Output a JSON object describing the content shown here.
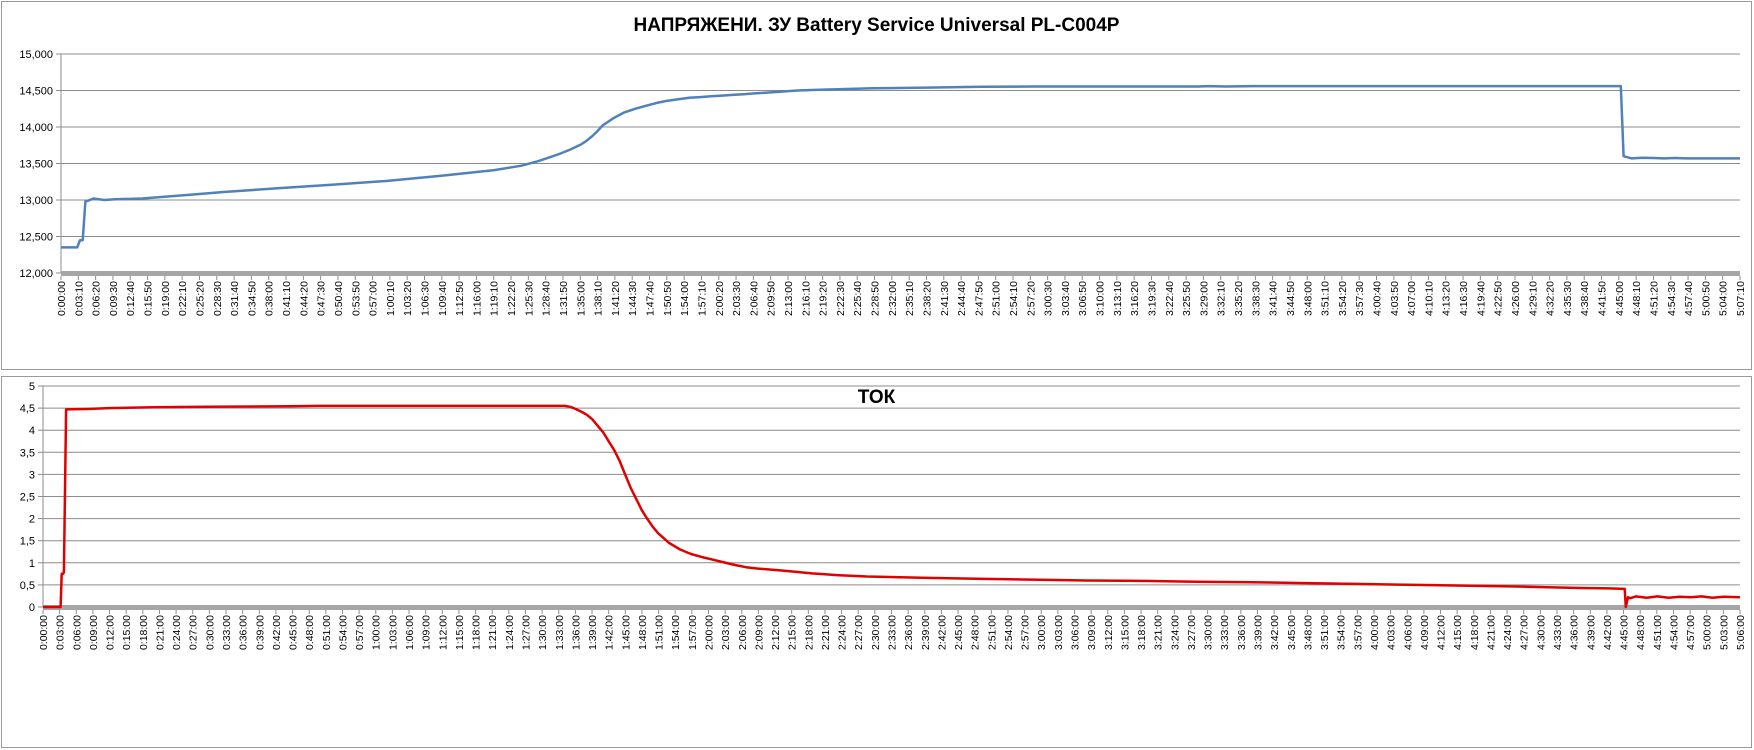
{
  "chart_data": [
    {
      "type": "line",
      "title": "НАПРЯЖЕНИ. ЗУ Battery Service Universal PL-C004P",
      "xlabel": "",
      "ylabel": "",
      "ylim": [
        12000,
        15000
      ],
      "yticks": [
        "12,000",
        "12,500",
        "13,000",
        "13,500",
        "14,000",
        "14,500",
        "15,000"
      ],
      "ytick_values": [
        12000,
        12500,
        13000,
        13500,
        14000,
        14500,
        15000
      ],
      "grid": true,
      "legend": "none",
      "x_ticks": [
        "0:00:00",
        "0:03:10",
        "0:06:20",
        "0:09:30",
        "0:12:40",
        "0:15:50",
        "0:19:00",
        "0:22:10",
        "0:25:20",
        "0:28:30",
        "0:31:40",
        "0:34:50",
        "0:38:00",
        "0:41:10",
        "0:44:20",
        "0:47:30",
        "0:50:40",
        "0:53:50",
        "0:57:00",
        "1:00:10",
        "1:03:20",
        "1:06:30",
        "1:09:40",
        "1:12:50",
        "1:16:00",
        "1:19:10",
        "1:22:20",
        "1:25:30",
        "1:28:40",
        "1:31:50",
        "1:35:00",
        "1:38:10",
        "1:41:20",
        "1:44:30",
        "1:47:40",
        "1:50:50",
        "1:54:00",
        "1:57:10",
        "2:00:20",
        "2:03:30",
        "2:06:40",
        "2:09:50",
        "2:13:00",
        "2:16:10",
        "2:19:20",
        "2:22:30",
        "2:25:40",
        "2:28:50",
        "2:32:00",
        "2:35:10",
        "2:38:20",
        "2:41:30",
        "2:44:40",
        "2:47:50",
        "2:51:00",
        "2:54:10",
        "2:57:20",
        "3:00:30",
        "3:03:40",
        "3:06:50",
        "3:10:00",
        "3:13:10",
        "3:16:20",
        "3:19:30",
        "3:22:40",
        "3:25:50",
        "3:29:00",
        "3:32:10",
        "3:35:20",
        "3:38:30",
        "3:41:40",
        "3:44:50",
        "3:48:00",
        "3:51:10",
        "3:54:20",
        "3:57:30",
        "4:00:40",
        "4:03:50",
        "4:07:00",
        "4:10:10",
        "4:13:20",
        "4:16:30",
        "4:19:40",
        "4:22:50",
        "4:26:00",
        "4:29:10",
        "4:32:20",
        "4:35:30",
        "4:38:40",
        "4:41:50",
        "4:45:00",
        "4:48:10",
        "4:51:20",
        "4:54:30",
        "4:57:40",
        "5:00:50",
        "5:04:00",
        "5:07:10"
      ],
      "x_range_min": [
        0,
        310
      ],
      "color": "#4f81bd",
      "series": [
        {
          "x_min": [
            0,
            3,
            3.5,
            4,
            4.5,
            5,
            6,
            8,
            10,
            15,
            20,
            25,
            30,
            40,
            50,
            60,
            70,
            80,
            85,
            88,
            90,
            92,
            94,
            96,
            97,
            98,
            99,
            100,
            102,
            104,
            106,
            108,
            110,
            112,
            114,
            116,
            118,
            120,
            122,
            124,
            126,
            128,
            130,
            132,
            134,
            136,
            138,
            140,
            145,
            150,
            160,
            170,
            180,
            200,
            210,
            212,
            215,
            220,
            240,
            260,
            280,
            288,
            288.5,
            290,
            292,
            294,
            296,
            298,
            300,
            305,
            310
          ],
          "values": [
            12350,
            12350,
            12450,
            12450,
            12980,
            12990,
            13020,
            13000,
            13010,
            13020,
            13050,
            13080,
            13110,
            13160,
            13210,
            13260,
            13330,
            13410,
            13470,
            13530,
            13580,
            13630,
            13690,
            13760,
            13810,
            13870,
            13940,
            14020,
            14120,
            14200,
            14250,
            14290,
            14330,
            14360,
            14380,
            14400,
            14410,
            14420,
            14430,
            14440,
            14450,
            14460,
            14470,
            14480,
            14490,
            14500,
            14505,
            14510,
            14520,
            14530,
            14540,
            14550,
            14555,
            14555,
            14555,
            14560,
            14555,
            14560,
            14560,
            14560,
            14560,
            14560,
            13600,
            13570,
            13580,
            13575,
            13570,
            13575,
            13570,
            13570,
            13570
          ]
        }
      ]
    },
    {
      "type": "line",
      "title": "ТОК",
      "xlabel": "",
      "ylabel": "",
      "ylim": [
        0,
        5
      ],
      "yticks": [
        "0",
        "0,5",
        "1",
        "1,5",
        "2",
        "2,5",
        "3",
        "3,5",
        "4",
        "4,5",
        "5"
      ],
      "ytick_values": [
        0,
        0.5,
        1,
        1.5,
        2,
        2.5,
        3,
        3.5,
        4,
        4.5,
        5
      ],
      "grid": true,
      "legend": "none",
      "x_ticks": [
        "0:00:00",
        "0:03:00",
        "0:06:00",
        "0:09:00",
        "0:12:00",
        "0:15:00",
        "0:18:00",
        "0:21:00",
        "0:24:00",
        "0:27:00",
        "0:30:00",
        "0:33:00",
        "0:36:00",
        "0:39:00",
        "0:42:00",
        "0:45:00",
        "0:48:00",
        "0:51:00",
        "0:54:00",
        "0:57:00",
        "1:00:00",
        "1:03:00",
        "1:06:00",
        "1:09:00",
        "1:12:00",
        "1:15:00",
        "1:18:00",
        "1:21:00",
        "1:24:00",
        "1:27:00",
        "1:30:00",
        "1:33:00",
        "1:36:00",
        "1:39:00",
        "1:42:00",
        "1:45:00",
        "1:48:00",
        "1:51:00",
        "1:54:00",
        "1:57:00",
        "2:00:00",
        "2:03:00",
        "2:06:00",
        "2:09:00",
        "2:12:00",
        "2:15:00",
        "2:18:00",
        "2:21:00",
        "2:24:00",
        "2:27:00",
        "2:30:00",
        "2:33:00",
        "2:36:00",
        "2:39:00",
        "2:42:00",
        "2:45:00",
        "2:48:00",
        "2:51:00",
        "2:54:00",
        "2:57:00",
        "3:00:00",
        "3:03:00",
        "3:06:00",
        "3:09:00",
        "3:12:00",
        "3:15:00",
        "3:18:00",
        "3:21:00",
        "3:24:00",
        "3:27:00",
        "3:30:00",
        "3:33:00",
        "3:36:00",
        "3:39:00",
        "3:42:00",
        "3:45:00",
        "3:48:00",
        "3:51:00",
        "3:54:00",
        "3:57:00",
        "4:00:00",
        "4:03:00",
        "4:06:00",
        "4:09:00",
        "4:12:00",
        "4:15:00",
        "4:18:00",
        "4:21:00",
        "4:24:00",
        "4:27:00",
        "4:30:00",
        "4:33:00",
        "4:36:00",
        "4:39:00",
        "4:42:00",
        "4:45:00",
        "4:48:00",
        "4:51:00",
        "4:54:00",
        "4:57:00",
        "5:00:00",
        "5:03:00",
        "5:06:00"
      ],
      "x_range_min": [
        0,
        309
      ],
      "color": "#e00000",
      "series": [
        {
          "x_min": [
            0,
            3.2,
            3.4,
            3.6,
            3.8,
            4.2,
            8,
            12,
            20,
            30,
            45,
            50,
            60,
            80,
            90,
            95,
            96,
            97,
            98,
            99,
            100,
            101,
            102,
            103,
            104,
            105,
            106,
            107,
            108,
            109,
            110,
            111,
            112,
            114,
            116,
            118,
            120,
            122,
            124,
            126,
            128,
            130,
            132,
            135,
            140,
            145,
            150,
            160,
            170,
            180,
            190,
            200,
            210,
            220,
            230,
            240,
            250,
            260,
            270,
            280,
            285,
            288,
            288.2,
            288.6,
            289,
            290,
            292,
            294,
            296,
            298,
            300,
            302,
            304,
            306,
            309
          ],
          "values": [
            0,
            0,
            0.75,
            0.75,
            0.78,
            4.47,
            4.48,
            4.5,
            4.52,
            4.53,
            4.54,
            4.55,
            4.55,
            4.55,
            4.55,
            4.55,
            4.53,
            4.48,
            4.42,
            4.35,
            4.25,
            4.1,
            3.95,
            3.75,
            3.55,
            3.3,
            3.0,
            2.7,
            2.45,
            2.2,
            2.0,
            1.82,
            1.67,
            1.45,
            1.3,
            1.2,
            1.13,
            1.07,
            1.01,
            0.95,
            0.9,
            0.87,
            0.85,
            0.82,
            0.76,
            0.72,
            0.69,
            0.66,
            0.64,
            0.62,
            0.6,
            0.59,
            0.57,
            0.56,
            0.54,
            0.52,
            0.5,
            0.48,
            0.46,
            0.43,
            0.42,
            0.41,
            0.0,
            0.22,
            0.2,
            0.24,
            0.21,
            0.24,
            0.21,
            0.23,
            0.22,
            0.24,
            0.21,
            0.23,
            0.22
          ]
        }
      ]
    }
  ]
}
